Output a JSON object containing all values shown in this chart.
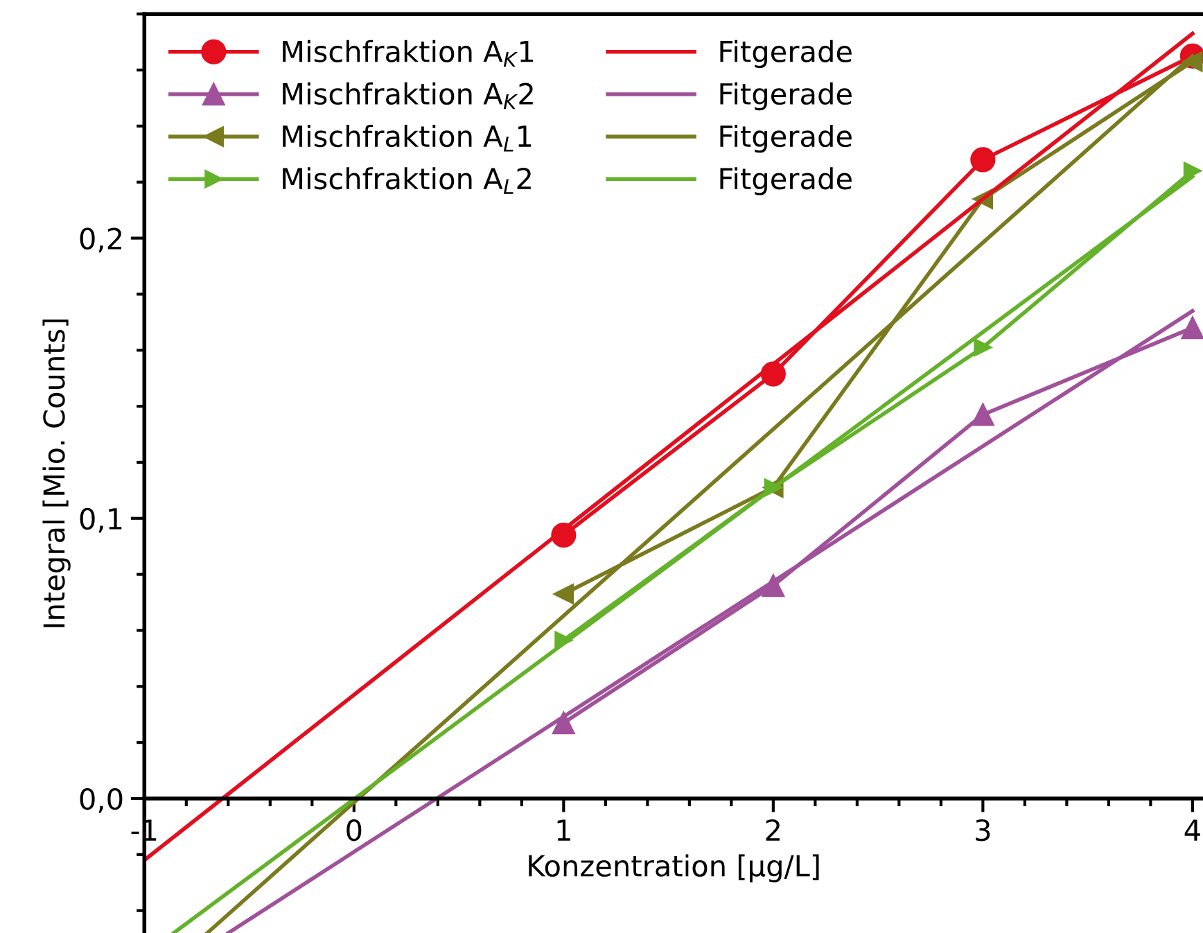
{
  "chart_data": {
    "type": "line",
    "xlabel": "Konzentration [µg/L]",
    "ylabel": "Integral [Mio. Counts]",
    "xlim": [
      -1,
      4.05
    ],
    "ylim": [
      -0.048,
      0.28
    ],
    "xticks": [
      -1,
      0,
      1,
      2,
      3,
      4
    ],
    "yticks": [
      {
        "value": 0,
        "label": "0,0"
      },
      {
        "value": 0.1,
        "label": "0,1"
      },
      {
        "value": 0.2,
        "label": "0,2"
      }
    ],
    "grid": false,
    "legend": "top left",
    "series": [
      {
        "name": "Mischfraktion A$_{K}$1",
        "color": "#e30e1e",
        "marker": "circle",
        "x": [
          1,
          2,
          3,
          4
        ],
        "values": [
          0.094,
          0.1515,
          0.228,
          0.265
        ]
      },
      {
        "name": "Mischfraktion A$_{K}$2",
        "color": "#a0519a",
        "marker": "triangle",
        "x": [
          1,
          2,
          3,
          4
        ],
        "values": [
          0.027,
          0.076,
          0.137,
          0.168
        ]
      },
      {
        "name": "Mischfraktion A$_{L}$1",
        "color": "#7a7a1e",
        "marker": "triangle-left",
        "x": [
          1,
          2,
          3,
          4
        ],
        "values": [
          0.073,
          0.111,
          0.214,
          0.263
        ]
      },
      {
        "name": "Mischfraktion A$_{L}$2",
        "color": "#64b22a",
        "marker": "triangle-right",
        "x": [
          1,
          2,
          3,
          4
        ],
        "values": [
          0.0565,
          0.111,
          0.161,
          0.224
        ]
      },
      {
        "name": "Fitgerade",
        "color": "#e30e1e",
        "marker": "none",
        "x": [
          -1,
          4
        ],
        "values": [
          -0.022,
          0.273
        ]
      },
      {
        "name": "Fitgerade",
        "color": "#a0519a",
        "marker": "none",
        "x": [
          -0.6,
          4
        ],
        "values": [
          -0.048,
          0.174
        ]
      },
      {
        "name": "Fitgerade",
        "color": "#7a7a1e",
        "marker": "none",
        "x": [
          -0.7,
          4
        ],
        "values": [
          -0.048,
          0.265
        ]
      },
      {
        "name": "Fitgerade",
        "color": "#64b22a",
        "marker": "none",
        "x": [
          -0.86,
          4
        ],
        "values": [
          -0.048,
          0.222
        ]
      }
    ]
  }
}
